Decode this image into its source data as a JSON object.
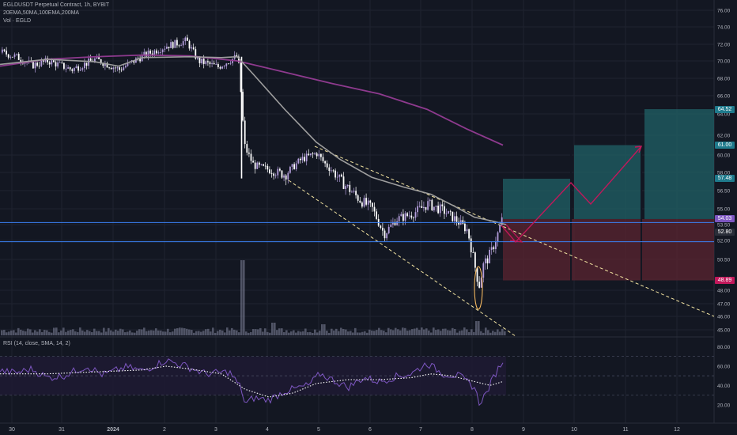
{
  "header": {
    "symbol_line": "EGLDUSDT Perpetual Contract, 1h, BYBIT",
    "indicators_line": "20EMA,50MA,100EMA,200MA",
    "volume_line": "Vol · EGLD",
    "rsi_line": "RSI (14, close, SMA, 14, 2)"
  },
  "colors": {
    "background": "#131722",
    "grid": "#1f2330",
    "candle_up": "#b39ddb",
    "candle_down": "#ffffff",
    "ma_short": "#9e9e9e",
    "ma_long": "#8e3a8e",
    "hline": "#3b82f6",
    "channel": "#f5e6a3",
    "target_zone": "#1f5c63",
    "stop_zone": "#5b2430",
    "path": "#c2185b",
    "rsi_line": "#7e57c2",
    "rsi_signal": "#ffffff",
    "ellipse": "#f4b860"
  },
  "chart_data": {
    "type": "candlestick",
    "y_ticks": [
      "76.00",
      "74.00",
      "72.00",
      "70.00",
      "68.00",
      "66.00",
      "64.00",
      "62.00",
      "60.00",
      "58.00",
      "56.50",
      "55.00",
      "53.50",
      "52.00",
      "50.50",
      "49.00",
      "48.00",
      "47.00",
      "46.00",
      "45.00"
    ],
    "x_ticks": [
      "30",
      "31",
      "2024",
      "2",
      "3",
      "4",
      "5",
      "6",
      "7",
      "8",
      "9",
      "10",
      "11",
      "12"
    ],
    "price_tags": [
      {
        "label": "64.52",
        "value": 64.52,
        "color": "#1f7a8c"
      },
      {
        "label": "61.00",
        "value": 61.0,
        "color": "#1f7a8c"
      },
      {
        "label": "57.48",
        "value": 57.48,
        "color": "#1f7a8c"
      },
      {
        "label": "54.03",
        "value": 54.03,
        "color": "#7e57c2"
      },
      {
        "label": "52.80",
        "value": 52.8,
        "color": "#2a2e39"
      },
      {
        "label": "48.89",
        "value": 48.89,
        "color": "#c2185b"
      }
    ],
    "horizontal_lines": [
      53.7,
      51.9
    ],
    "ylim": [
      44.7,
      76.6
    ],
    "rsi": {
      "ticks": [
        "80.00",
        "60.00",
        "40.00",
        "20.00"
      ],
      "ylim": [
        10,
        82
      ],
      "band": [
        30,
        70
      ]
    }
  }
}
